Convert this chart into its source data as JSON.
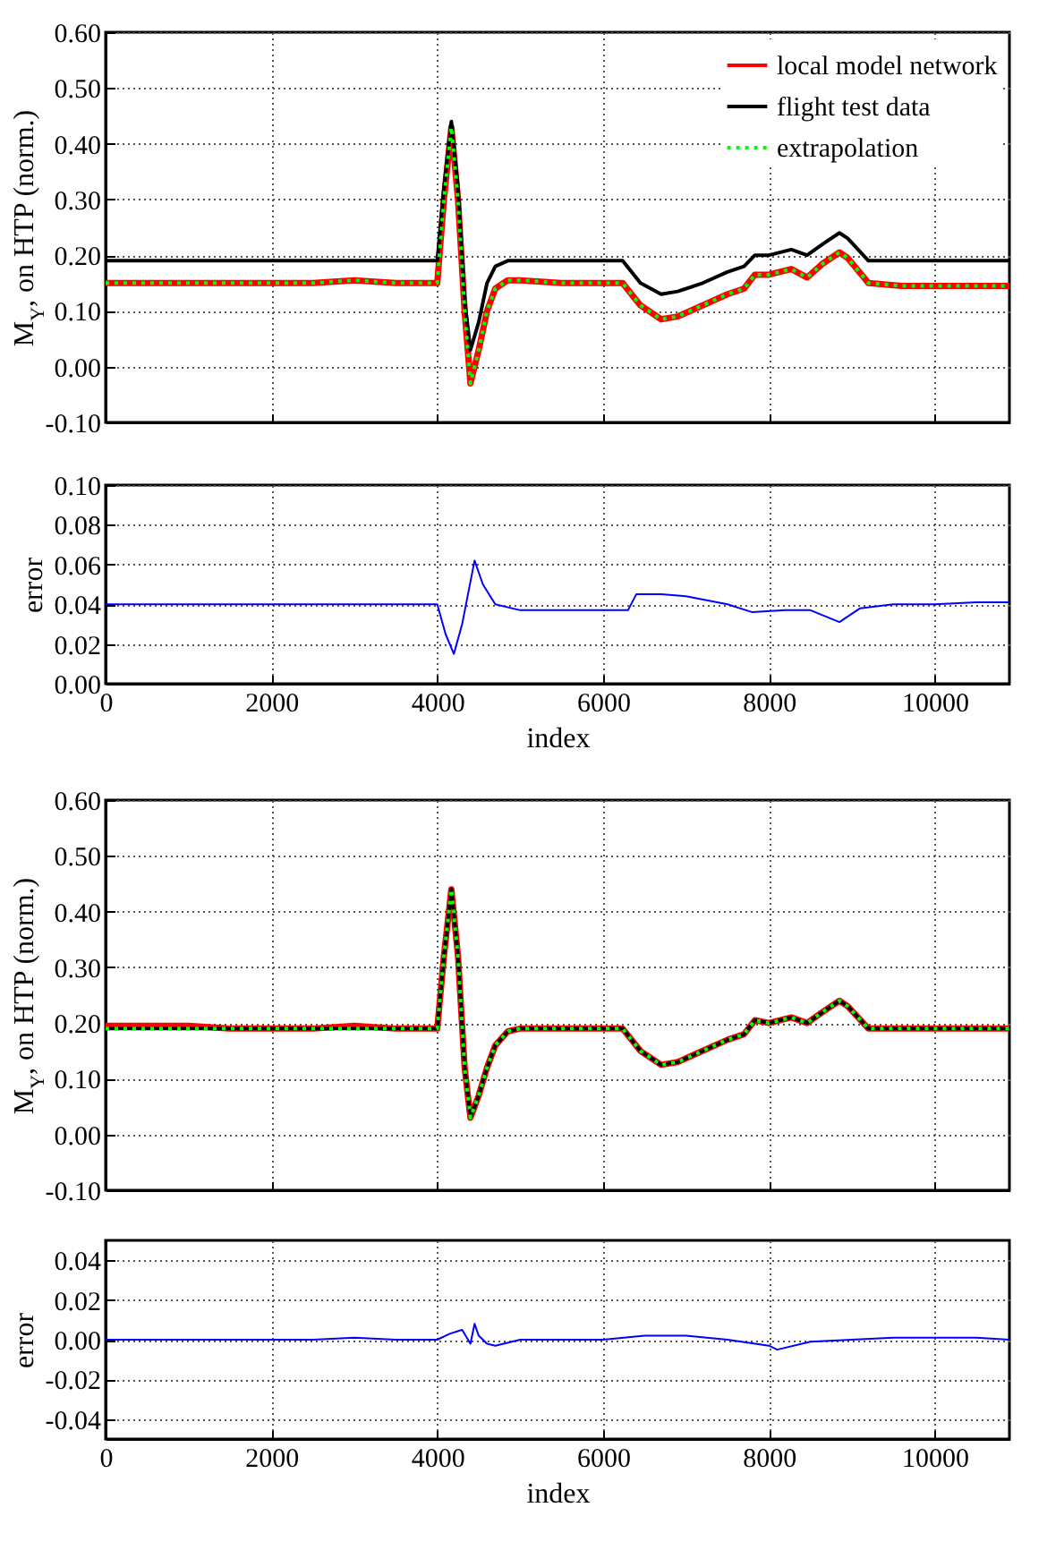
{
  "chart_data": [
    {
      "type": "line",
      "ylabel": "M$_{Y}$, on HTP (norm.)",
      "x": [
        0,
        500,
        1000,
        1500,
        2000,
        2500,
        3000,
        3500,
        3900,
        4000,
        4080,
        4170,
        4250,
        4330,
        4400,
        4500,
        4600,
        4700,
        4850,
        5000,
        5500,
        6000,
        6235,
        6450,
        6700,
        6900,
        7200,
        7500,
        7700,
        7830,
        8000,
        8270,
        8460,
        8650,
        8850,
        8950,
        9200,
        9600,
        10000,
        10500,
        10900
      ],
      "series": [
        {
          "name": "local model network",
          "color": "#ff0000",
          "values": [
            0.15,
            0.15,
            0.15,
            0.15,
            0.15,
            0.15,
            0.155,
            0.15,
            0.15,
            0.15,
            0.3,
            0.43,
            0.3,
            0.1,
            -0.03,
            0.03,
            0.1,
            0.14,
            0.155,
            0.155,
            0.15,
            0.15,
            0.15,
            0.11,
            0.085,
            0.09,
            0.11,
            0.13,
            0.14,
            0.165,
            0.165,
            0.175,
            0.16,
            0.185,
            0.205,
            0.195,
            0.15,
            0.145,
            0.145,
            0.145,
            0.145
          ]
        },
        {
          "name": "flight test data",
          "color": "#000000",
          "values": [
            0.19,
            0.19,
            0.19,
            0.19,
            0.19,
            0.19,
            0.19,
            0.19,
            0.19,
            0.19,
            0.32,
            0.44,
            0.32,
            0.12,
            0.03,
            0.08,
            0.15,
            0.18,
            0.19,
            0.19,
            0.19,
            0.19,
            0.19,
            0.15,
            0.13,
            0.135,
            0.15,
            0.17,
            0.18,
            0.2,
            0.2,
            0.21,
            0.2,
            0.22,
            0.24,
            0.23,
            0.19,
            0.19,
            0.19,
            0.19,
            0.19
          ]
        },
        {
          "name": "extrapolation",
          "color": "#00ff00",
          "line_style": "dotted",
          "values": [
            0.15,
            0.15,
            0.15,
            0.15,
            0.15,
            0.15,
            0.155,
            0.15,
            0.15,
            0.15,
            0.3,
            0.43,
            0.3,
            0.1,
            -0.03,
            0.03,
            0.1,
            0.14,
            0.155,
            0.155,
            0.15,
            0.15,
            0.15,
            0.11,
            0.085,
            0.09,
            0.11,
            0.13,
            0.14,
            0.165,
            0.165,
            0.175,
            0.16,
            0.185,
            0.205,
            0.195,
            0.15,
            0.145,
            0.145,
            0.145,
            0.145
          ]
        }
      ],
      "xlim": [
        0,
        10900
      ],
      "xticks": [
        0,
        2000,
        4000,
        6000,
        8000,
        10000
      ],
      "ylim": [
        -0.1,
        0.6
      ],
      "yticks": [
        {
          "value": -0.1,
          "label": "-0.10"
        },
        {
          "value": 0,
          "label": "0.00"
        },
        {
          "value": 0.1,
          "label": "0.10"
        },
        {
          "value": 0.2,
          "label": "0.20"
        },
        {
          "value": 0.3,
          "label": "0.30"
        },
        {
          "value": 0.4,
          "label": "0.40"
        },
        {
          "value": 0.5,
          "label": "0.50"
        },
        {
          "value": 0.6,
          "label": "0.60"
        }
      ],
      "grid": true,
      "legend": "top right",
      "tick_labels": "y"
    },
    {
      "type": "line",
      "ylabel": "error",
      "xlabel": "index",
      "x": [
        0,
        500,
        1000,
        1500,
        2000,
        2500,
        3000,
        3500,
        3900,
        4000,
        4100,
        4200,
        4300,
        4450,
        4550,
        4700,
        5000,
        5500,
        6000,
        6300,
        6400,
        6700,
        7000,
        7500,
        7800,
        8200,
        8500,
        8850,
        9100,
        9500,
        10000,
        10500,
        10900
      ],
      "series": [
        {
          "color": "#0000ff",
          "values": [
            0.04,
            0.04,
            0.04,
            0.04,
            0.04,
            0.04,
            0.04,
            0.04,
            0.04,
            0.04,
            0.025,
            0.015,
            0.03,
            0.062,
            0.05,
            0.04,
            0.037,
            0.037,
            0.037,
            0.037,
            0.045,
            0.045,
            0.044,
            0.04,
            0.036,
            0.037,
            0.037,
            0.031,
            0.038,
            0.04,
            0.04,
            0.041,
            0.041
          ]
        }
      ],
      "xlim": [
        0,
        10900
      ],
      "xticks": [
        0,
        2000,
        4000,
        6000,
        8000,
        10000
      ],
      "ylim": [
        0,
        0.1
      ],
      "yticks": [
        {
          "value": 0,
          "label": "0.00"
        },
        {
          "value": 0.02,
          "label": "0.02"
        },
        {
          "value": 0.04,
          "label": "0.04"
        },
        {
          "value": 0.06,
          "label": "0.06"
        },
        {
          "value": 0.08,
          "label": "0.08"
        },
        {
          "value": 0.1,
          "label": "0.10"
        }
      ],
      "grid": true
    },
    {
      "type": "line",
      "ylabel": "M$_{Y}$, on HTP (norm.)",
      "x": [
        0,
        500,
        1000,
        1500,
        2000,
        2500,
        3000,
        3500,
        3900,
        4000,
        4080,
        4170,
        4250,
        4330,
        4400,
        4500,
        4600,
        4700,
        4850,
        5000,
        5500,
        6000,
        6235,
        6450,
        6700,
        6900,
        7200,
        7500,
        7700,
        7830,
        8000,
        8270,
        8460,
        8650,
        8850,
        8950,
        9200,
        9600,
        10000,
        10500,
        10900
      ],
      "series": [
        {
          "name": "local model network",
          "color": "#ff0000",
          "values": [
            0.195,
            0.195,
            0.195,
            0.19,
            0.19,
            0.19,
            0.195,
            0.19,
            0.19,
            0.19,
            0.32,
            0.44,
            0.32,
            0.12,
            0.03,
            0.07,
            0.12,
            0.16,
            0.185,
            0.19,
            0.19,
            0.19,
            0.19,
            0.15,
            0.125,
            0.13,
            0.15,
            0.17,
            0.18,
            0.205,
            0.2,
            0.21,
            0.2,
            0.22,
            0.24,
            0.23,
            0.19,
            0.19,
            0.19,
            0.19,
            0.19
          ]
        },
        {
          "name": "flight test data",
          "color": "#000000",
          "values": [
            0.19,
            0.19,
            0.19,
            0.19,
            0.19,
            0.19,
            0.19,
            0.19,
            0.19,
            0.19,
            0.32,
            0.44,
            0.32,
            0.12,
            0.03,
            0.07,
            0.12,
            0.16,
            0.185,
            0.19,
            0.19,
            0.19,
            0.19,
            0.15,
            0.125,
            0.13,
            0.15,
            0.17,
            0.18,
            0.205,
            0.2,
            0.21,
            0.2,
            0.22,
            0.24,
            0.23,
            0.19,
            0.19,
            0.19,
            0.19,
            0.19
          ]
        },
        {
          "name": "extrapolation",
          "color": "#00ff00",
          "line_style": "dotted",
          "values": [
            0.19,
            0.19,
            0.19,
            0.19,
            0.19,
            0.19,
            0.19,
            0.19,
            0.19,
            0.19,
            0.32,
            0.44,
            0.32,
            0.12,
            0.03,
            0.07,
            0.12,
            0.16,
            0.185,
            0.19,
            0.19,
            0.19,
            0.19,
            0.15,
            0.125,
            0.13,
            0.15,
            0.17,
            0.18,
            0.205,
            0.2,
            0.21,
            0.2,
            0.22,
            0.24,
            0.23,
            0.19,
            0.19,
            0.19,
            0.19,
            0.19
          ]
        }
      ],
      "xlim": [
        0,
        10900
      ],
      "xticks": [
        0,
        2000,
        4000,
        6000,
        8000,
        10000
      ],
      "ylim": [
        -0.1,
        0.6
      ],
      "yticks": [
        {
          "value": -0.1,
          "label": "-0.10"
        },
        {
          "value": 0,
          "label": "0.00"
        },
        {
          "value": 0.1,
          "label": "0.10"
        },
        {
          "value": 0.2,
          "label": "0.20"
        },
        {
          "value": 0.3,
          "label": "0.30"
        },
        {
          "value": 0.4,
          "label": "0.40"
        },
        {
          "value": 0.5,
          "label": "0.50"
        },
        {
          "value": 0.6,
          "label": "0.60"
        }
      ],
      "grid": true,
      "legend": "top right",
      "tick_labels": "y"
    },
    {
      "type": "line",
      "ylabel": "error",
      "xlabel": "index",
      "x": [
        0,
        500,
        1000,
        1500,
        2000,
        2500,
        3000,
        3500,
        4000,
        4150,
        4300,
        4400,
        4450,
        4500,
        4600,
        4700,
        5000,
        5500,
        6000,
        6500,
        7000,
        7500,
        8000,
        8100,
        8500,
        9000,
        9500,
        10000,
        10500,
        10900
      ],
      "series": [
        {
          "color": "#0000ff",
          "values": [
            0,
            0,
            0,
            0,
            0,
            0,
            0.001,
            0,
            0,
            0.003,
            0.005,
            -0.002,
            0.008,
            0.002,
            -0.002,
            -0.003,
            0,
            0,
            0,
            0.002,
            0.002,
            0,
            -0.003,
            -0.005,
            -0.001,
            0,
            0.001,
            0.001,
            0.001,
            0
          ]
        }
      ],
      "xlim": [
        0,
        10900
      ],
      "xticks": [
        0,
        2000,
        4000,
        6000,
        8000,
        10000
      ],
      "ylim": [
        -0.05,
        0.05
      ],
      "yticks": [
        {
          "value": -0.04,
          "label": "-0.04"
        },
        {
          "value": -0.02,
          "label": "-0.02"
        },
        {
          "value": 0,
          "label": "0.00"
        },
        {
          "value": 0.02,
          "label": "0.02"
        },
        {
          "value": 0.04,
          "label": "0.04"
        }
      ],
      "grid": true
    }
  ]
}
